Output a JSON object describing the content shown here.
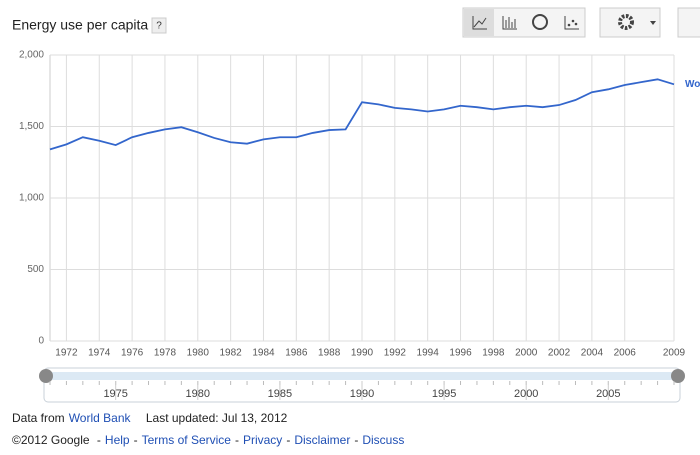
{
  "header": {
    "title": "Energy use per capita",
    "help": "?"
  },
  "chart_data": {
    "type": "line",
    "x": [
      1971,
      1972,
      1973,
      1974,
      1975,
      1976,
      1977,
      1978,
      1979,
      1980,
      1981,
      1982,
      1983,
      1984,
      1985,
      1986,
      1987,
      1988,
      1989,
      1990,
      1991,
      1992,
      1993,
      1994,
      1995,
      1996,
      1997,
      1998,
      1999,
      2000,
      2001,
      2002,
      2003,
      2004,
      2005,
      2006,
      2007,
      2008,
      2009
    ],
    "series": [
      {
        "name": "World",
        "color": "#3366cc",
        "values": [
          1340,
          1375,
          1425,
          1400,
          1370,
          1425,
          1455,
          1480,
          1495,
          1460,
          1420,
          1390,
          1380,
          1410,
          1425,
          1425,
          1455,
          1475,
          1480,
          1670,
          1655,
          1630,
          1620,
          1605,
          1620,
          1645,
          1635,
          1620,
          1635,
          1645,
          1635,
          1650,
          1685,
          1740,
          1760,
          1790,
          1810,
          1830,
          1795
        ]
      }
    ],
    "xlim": [
      1971,
      2009
    ],
    "xticks": [
      1972,
      1974,
      1976,
      1978,
      1980,
      1982,
      1984,
      1986,
      1988,
      1990,
      1992,
      1994,
      1996,
      1998,
      2000,
      2002,
      2004,
      2006,
      2009
    ],
    "ylim": [
      0,
      2000
    ],
    "yticks": [
      0,
      500,
      {
        "value": 1000,
        "label": "1,000"
      },
      {
        "value": 1500,
        "label": "1,500"
      },
      {
        "value": 2000,
        "label": "2,000"
      }
    ],
    "grid": true
  },
  "timeline": {
    "labels": [
      1975,
      1980,
      1985,
      1990,
      1995,
      2000,
      2005
    ]
  },
  "footer": {
    "source_prefix": "Data from",
    "source": "World Bank",
    "updated": "Last updated: Jul 13, 2012",
    "copyright": "©2012 Google",
    "separator": "-",
    "links": [
      "Help",
      "Terms of Service",
      "Privacy",
      "Disclaimer",
      "Discuss"
    ]
  }
}
